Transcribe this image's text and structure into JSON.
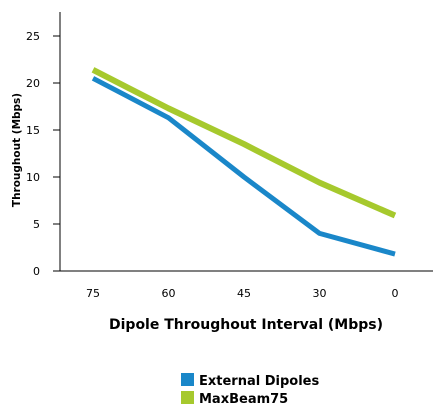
{
  "chart_data": {
    "type": "line",
    "title": "",
    "xlabel": "Dipole Throughout Interval (Mbps)",
    "ylabel": "Throughout (Mbps)",
    "categories": [
      "75",
      "60",
      "45",
      "30",
      "0"
    ],
    "yticks": [
      "0",
      "5",
      "10",
      "15",
      "20",
      "25"
    ],
    "ylim": [
      0,
      28
    ],
    "grid": false,
    "legend_position": "bottom",
    "series": [
      {
        "name": "External Dipoles",
        "color": "#1a87c9",
        "values": [
          20.5,
          16.3,
          10.0,
          4.0,
          1.8
        ]
      },
      {
        "name": "MaxBeam75",
        "color": "#a6c92d",
        "values": [
          21.4,
          17.3,
          13.5,
          9.4,
          5.9
        ]
      }
    ]
  }
}
